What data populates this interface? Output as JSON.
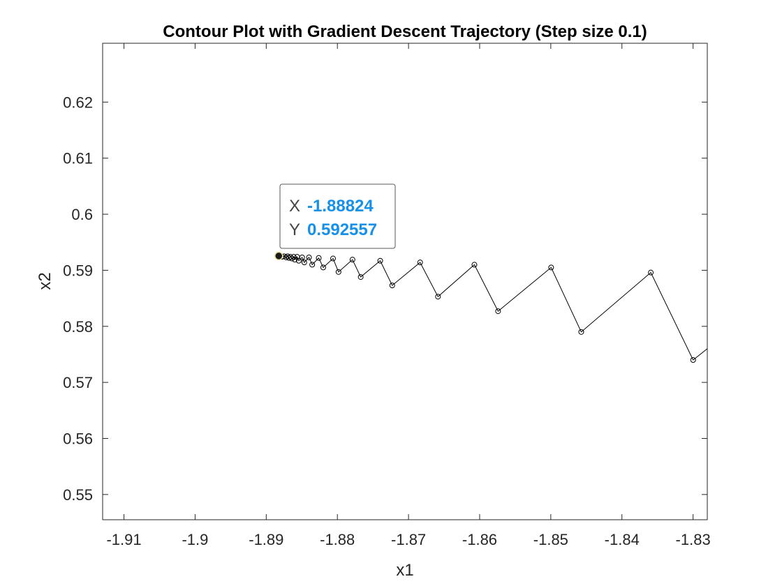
{
  "chart_data": {
    "type": "line",
    "title": "Contour Plot with Gradient Descent Trajectory (Step size 0.1)",
    "xlabel": "x1",
    "ylabel": "x2",
    "xlim": [
      -1.913,
      -1.828
    ],
    "ylim": [
      0.5455,
      0.6305
    ],
    "xticks": [
      -1.91,
      -1.9,
      -1.89,
      -1.88,
      -1.87,
      -1.86,
      -1.85,
      -1.84,
      -1.83
    ],
    "xtick_labels": [
      "-1.91",
      "-1.9",
      "-1.89",
      "-1.88",
      "-1.87",
      "-1.86",
      "-1.85",
      "-1.84",
      "-1.83"
    ],
    "yticks": [
      0.55,
      0.56,
      0.57,
      0.58,
      0.59,
      0.6,
      0.61,
      0.62
    ],
    "ytick_labels": [
      "0.55",
      "0.56",
      "0.57",
      "0.58",
      "0.59",
      "0.6",
      "0.61",
      "0.62"
    ],
    "grid": false,
    "series": [
      {
        "marker": "circle",
        "color": "#000000",
        "x": [
          -1.828,
          -1.82999,
          -1.83594,
          -1.84572,
          -1.84995,
          -1.85741,
          -1.86074,
          -1.86586,
          -1.86837,
          -1.87229,
          -1.87398,
          -1.87672,
          -1.87788,
          -1.87984,
          -1.88061,
          -1.88199,
          -1.88262,
          -1.88354,
          -1.88399,
          -1.88465,
          -1.88496,
          -1.88543,
          -1.88566,
          -1.88598,
          -1.88614,
          -1.8864,
          -1.8866,
          -1.8868,
          -1.887,
          -1.8872,
          -1.8875,
          -1.8878,
          -1.88824
        ],
        "y": [
          0.576,
          0.574,
          0.5896,
          0.579,
          0.5905,
          0.5827,
          0.591,
          0.5853,
          0.5914,
          0.5873,
          0.5917,
          0.5888,
          0.5919,
          0.5897,
          0.5921,
          0.5905,
          0.5922,
          0.591,
          0.5923,
          0.5914,
          0.5923,
          0.5917,
          0.5924,
          0.5919,
          0.5924,
          0.5921,
          0.5924,
          0.5922,
          0.5925,
          0.5923,
          0.5925,
          0.5924,
          0.592557
        ]
      }
    ],
    "datatip": {
      "x_key": "X",
      "x_value": "-1.88824",
      "y_key": "Y",
      "y_value": "0.592557",
      "point": [
        -1.88824,
        0.592557
      ]
    }
  }
}
